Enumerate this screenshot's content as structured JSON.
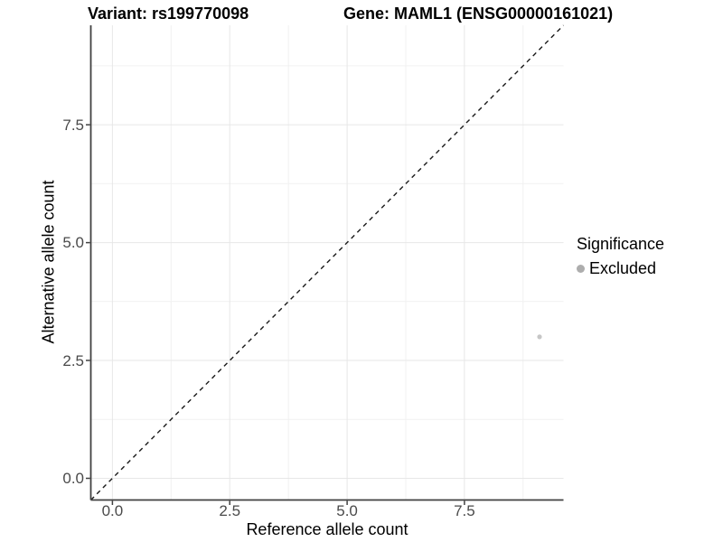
{
  "figure": {
    "title_left": "Variant: rs199770098",
    "title_right": "Gene: MAML1 (ENSG00000161021)"
  },
  "chart_data": {
    "type": "scatter",
    "title": "Variant: rs199770098   Gene: MAML1 (ENSG00000161021)",
    "xlabel": "Reference allele count",
    "ylabel": "Alternative allele count",
    "xlim": [
      -0.46,
      9.61
    ],
    "ylim": [
      -0.46,
      9.61
    ],
    "x_ticks": [
      0,
      2.5,
      5,
      7.5
    ],
    "y_ticks": [
      0,
      2.5,
      5,
      7.5
    ],
    "x_minor_ticks": [
      1.25,
      3.75,
      6.25,
      8.75
    ],
    "y_minor_ticks": [
      1.25,
      3.75,
      6.25,
      8.75
    ],
    "grid": true,
    "points": [
      {
        "x": 9.1,
        "y": 3.0,
        "series": "Excluded"
      }
    ],
    "reference_line": {
      "type": "identity",
      "slope": 1,
      "intercept": 0,
      "style": "dashed",
      "color": "#1a1a1a"
    },
    "legend": {
      "title": "Significance",
      "position": "right",
      "items": [
        {
          "label": "Excluded",
          "color": "#adadad"
        }
      ]
    }
  },
  "style": {
    "point_color": "#c6c6c6",
    "grid_major_color": "#e7e7e7",
    "grid_minor_color": "#f1f1f1",
    "axis_line_color": "#404040",
    "tick_color": "#404040",
    "tick_label_color": "#4a4a4a"
  }
}
